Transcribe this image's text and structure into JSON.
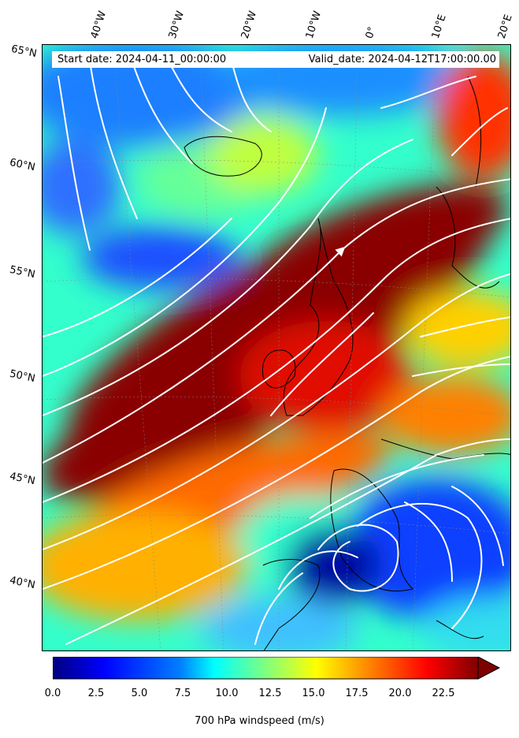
{
  "map": {
    "start_date": "Start date: 2024-04-11_00:00:00",
    "valid_date": "Valid_date: 2024-04-12T17:00:00.00",
    "longitude_labels": [
      "40°W",
      "30°W",
      "20°W",
      "10°W",
      "0°",
      "10°E",
      "20°E"
    ],
    "latitude_labels": [
      "65°N",
      "60°N",
      "55°N",
      "50°N",
      "45°N",
      "40°N"
    ],
    "variable": "700 hPa windspeed (m/s)"
  },
  "colorbar": {
    "ticks": [
      "0.0",
      "2.5",
      "5.0",
      "7.5",
      "10.0",
      "12.5",
      "15.0",
      "17.5",
      "20.0",
      "22.5"
    ],
    "min": 0,
    "max": 25,
    "extend": "max",
    "colormap": [
      "#00007f",
      "#0000ff",
      "#007fff",
      "#00ffff",
      "#7fff7f",
      "#ffff00",
      "#ff7f00",
      "#ff0000",
      "#7f0000"
    ]
  }
}
